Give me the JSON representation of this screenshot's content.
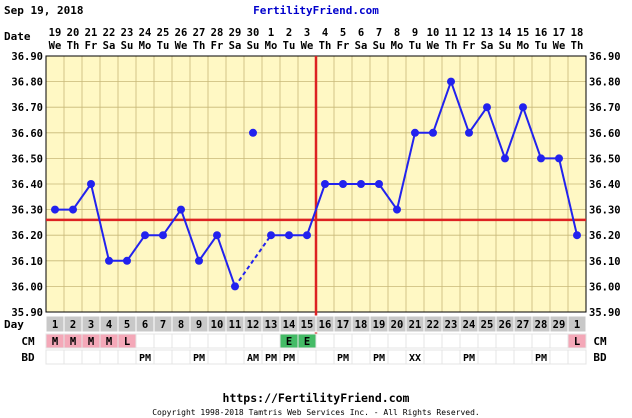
{
  "header": {
    "date_text": "Sep 19, 2018",
    "site_name": "FertilityFriend.com"
  },
  "footer": {
    "url": "https://FertilityFriend.com",
    "copyright": "Copyright 1998-2018 Tamtris Web Services Inc. - All Rights Reserved."
  },
  "row_labels": {
    "date": "Date",
    "day": "Day",
    "cm": "CM",
    "bd": "BD"
  },
  "colors": {
    "plot_bg": "#fff8c4",
    "grid": "#c8b878",
    "series": "#2222ee",
    "coverline": "#dd2222",
    "day_bg": "#c8c8c8",
    "cm_pink": "#f4a8b8",
    "cm_green": "#44bb66"
  },
  "chart_data": {
    "type": "line",
    "ylim": [
      35.9,
      36.9
    ],
    "yticks": [
      "35.90",
      "36.00",
      "36.10",
      "36.20",
      "36.30",
      "36.40",
      "36.50",
      "36.60",
      "36.70",
      "36.80",
      "36.90"
    ],
    "dates": [
      "19",
      "20",
      "21",
      "22",
      "23",
      "24",
      "25",
      "26",
      "27",
      "28",
      "29",
      "30",
      "1",
      "2",
      "3",
      "4",
      "5",
      "6",
      "7",
      "8",
      "9",
      "10",
      "11",
      "12",
      "13",
      "14",
      "15",
      "16",
      "17",
      "18"
    ],
    "weekdays": [
      "We",
      "Th",
      "Fr",
      "Sa",
      "Su",
      "Mo",
      "Tu",
      "We",
      "Th",
      "Fr",
      "Sa",
      "Su",
      "Mo",
      "Tu",
      "We",
      "Th",
      "Fr",
      "Sa",
      "Su",
      "Mo",
      "Tu",
      "We",
      "Th",
      "Fr",
      "Sa",
      "Su",
      "Mo",
      "Tu",
      "We",
      "Th"
    ],
    "cycle_days": [
      "1",
      "2",
      "3",
      "4",
      "5",
      "6",
      "7",
      "8",
      "9",
      "10",
      "11",
      "12",
      "13",
      "14",
      "15",
      "16",
      "17",
      "18",
      "19",
      "20",
      "21",
      "22",
      "23",
      "24",
      "25",
      "26",
      "27",
      "28",
      "29",
      "1"
    ],
    "temps": [
      36.3,
      36.3,
      36.4,
      36.1,
      36.1,
      36.2,
      36.2,
      36.3,
      36.1,
      36.2,
      36.0,
      36.6,
      36.2,
      36.2,
      36.2,
      36.4,
      36.4,
      36.4,
      36.4,
      36.3,
      36.6,
      36.6,
      36.8,
      36.6,
      36.7,
      36.5,
      36.7,
      36.5,
      36.5,
      36.2
    ],
    "discarded_index": 11,
    "coverline": 36.26,
    "ovulation_index": 14,
    "cm": [
      "M",
      "M",
      "M",
      "M",
      "L",
      "",
      "",
      "",
      "",
      "",
      "",
      "",
      "",
      "E",
      "E",
      "",
      "",
      "",
      "",
      "",
      "",
      "",
      "",
      "",
      "",
      "",
      "",
      "",
      "",
      "L"
    ],
    "bd": [
      "",
      "",
      "",
      "",
      "",
      "PM",
      "",
      "",
      "PM",
      "",
      "",
      "AM",
      "PM",
      "PM",
      "",
      "",
      "PM",
      "",
      "PM",
      "",
      "XX",
      "",
      "",
      "PM",
      "",
      "",
      "",
      "PM",
      "",
      ""
    ]
  }
}
